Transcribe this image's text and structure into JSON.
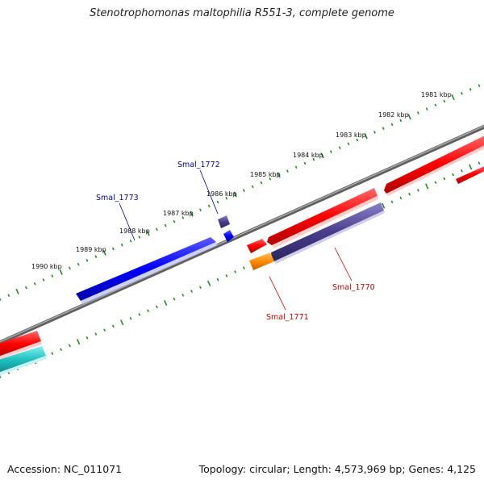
{
  "title": "Stenotrophomonas maltophilia R551-3, complete genome",
  "footer": {
    "accession": "Accession: NC_011071",
    "summary": "Topology: circular; Length: 4,573,969 bp; Genes: 4,125"
  },
  "scale_labels": [
    "1981 kbp",
    "1982 kbp",
    "1983 kbp",
    "1984 kbp",
    "1985 kbp",
    "1986 kbp",
    "1987 kbp",
    "1988 kbp",
    "1989 kbp",
    "1990 kbp"
  ],
  "gene_labels": [
    {
      "text": "Smal_1773",
      "color": "#0000aa"
    },
    {
      "text": "Smal_1772",
      "color": "#0000aa"
    },
    {
      "text": "Smal_1770",
      "color": "#cc0000"
    },
    {
      "text": "Smal_1771",
      "color": "#cc0000"
    }
  ],
  "colors": {
    "backbone": "#808080",
    "scale": "#228b22",
    "cds_forward": "#ff0000",
    "cds_reverse": "#ff0000",
    "gene_blue": "#0000ff",
    "gene_slate": "#483d8b",
    "gene_orange": "#ff8c00",
    "gene_cyan": "#20c0c0"
  }
}
